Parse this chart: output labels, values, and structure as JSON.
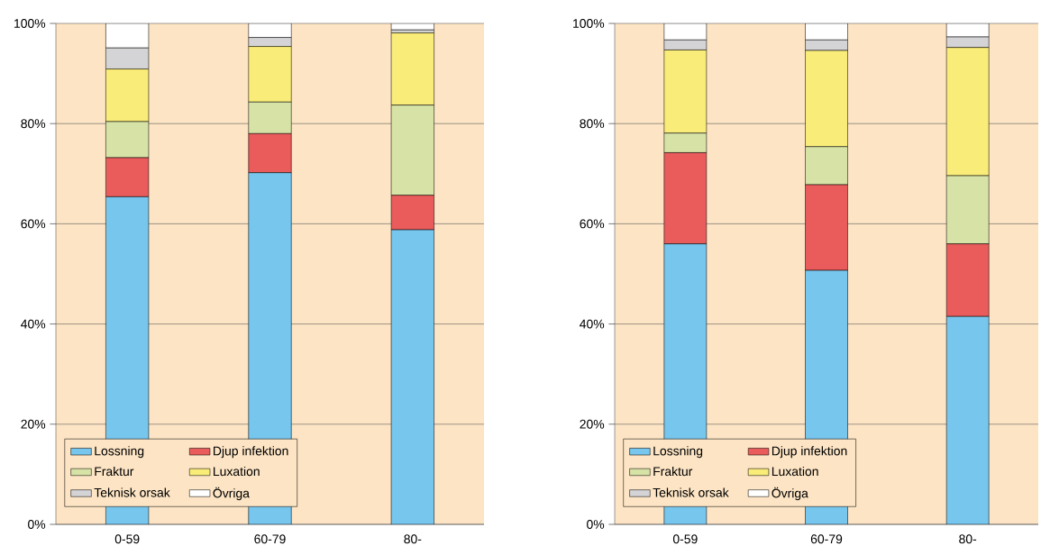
{
  "chart_data": [
    {
      "type": "bar",
      "stacked": true,
      "categories": [
        "0-59",
        "60-79",
        "80-"
      ],
      "series": [
        {
          "name": "Lossning",
          "color": "#76c6ee",
          "values": [
            65.4,
            70.2,
            58.8
          ]
        },
        {
          "name": "Djup infektion",
          "color": "#ea5b5b",
          "values": [
            7.8,
            7.8,
            6.9
          ]
        },
        {
          "name": "Fraktur",
          "color": "#d7e3a6",
          "values": [
            7.2,
            6.3,
            18.0
          ]
        },
        {
          "name": "Luxation",
          "color": "#f9ec78",
          "values": [
            10.5,
            11.1,
            14.4
          ]
        },
        {
          "name": "Teknisk orsak",
          "color": "#d4d4d6",
          "values": [
            4.2,
            1.8,
            0.6
          ]
        },
        {
          "name": "Övriga",
          "color": "#ffffff",
          "values": [
            4.9,
            2.8,
            1.3
          ]
        }
      ],
      "ylim": [
        0,
        100
      ],
      "yticks": [
        {
          "value": 0,
          "label": "0%"
        },
        {
          "value": 20,
          "label": "20%"
        },
        {
          "value": 40,
          "label": "40%"
        },
        {
          "value": 60,
          "label": "60%"
        },
        {
          "value": 80,
          "label": "80%"
        },
        {
          "value": 100,
          "label": "100%"
        }
      ],
      "grid": "y",
      "legend": "bottom left"
    },
    {
      "type": "bar",
      "stacked": true,
      "categories": [
        "0-59",
        "60-79",
        "80-"
      ],
      "series": [
        {
          "name": "Lossning",
          "color": "#76c6ee",
          "values": [
            56.0,
            50.7,
            41.5
          ]
        },
        {
          "name": "Djup infektion",
          "color": "#ea5b5b",
          "values": [
            18.2,
            17.1,
            14.5
          ]
        },
        {
          "name": "Fraktur",
          "color": "#d7e3a6",
          "values": [
            3.9,
            7.6,
            13.6
          ]
        },
        {
          "name": "Luxation",
          "color": "#f9ec78",
          "values": [
            16.6,
            19.2,
            25.6
          ]
        },
        {
          "name": "Teknisk orsak",
          "color": "#d4d4d6",
          "values": [
            2.0,
            2.1,
            2.1
          ]
        },
        {
          "name": "Övriga",
          "color": "#ffffff",
          "values": [
            3.3,
            3.3,
            2.7
          ]
        }
      ],
      "ylim": [
        0,
        100
      ],
      "yticks": [
        {
          "value": 0,
          "label": "0%"
        },
        {
          "value": 20,
          "label": "20%"
        },
        {
          "value": 40,
          "label": "40%"
        },
        {
          "value": 60,
          "label": "60%"
        },
        {
          "value": 80,
          "label": "80%"
        },
        {
          "value": 100,
          "label": "100%"
        }
      ],
      "grid": "y",
      "legend": "bottom left"
    }
  ]
}
